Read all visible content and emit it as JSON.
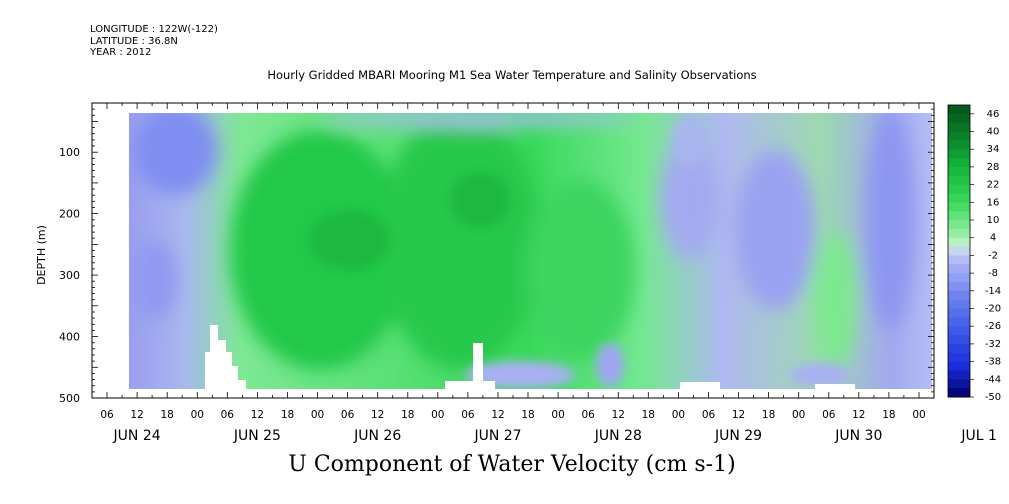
{
  "header": {
    "longitude": "LONGITUDE : 122W(-122)",
    "latitude": "LATITUDE : 36.8N",
    "year": "YEAR : 2012",
    "title": "Hourly Gridded MBARI Mooring M1 Sea Water Temperature and Salinity Observations"
  },
  "chart_data": {
    "type": "heatmap",
    "title": "Hourly Gridded MBARI Mooring M1 Sea Water Temperature and Salinity Observations",
    "xlabel": "U Component of Water Velocity (cm s-1)",
    "ylabel": "DEPTH (m)",
    "x_ticks_hours": [
      "06",
      "12",
      "18",
      "00",
      "06",
      "12",
      "18",
      "00",
      "06",
      "12",
      "18",
      "00",
      "06",
      "12",
      "18",
      "00",
      "06",
      "12",
      "18",
      "00",
      "06",
      "12",
      "18",
      "00",
      "06",
      "12",
      "18",
      "00",
      "06",
      "12",
      "18",
      "00"
    ],
    "x_day_labels": [
      "JUN 24",
      "JUN 25",
      "JUN 26",
      "JUN 27",
      "JUN 28",
      "JUN 29",
      "JUN 30",
      "JUL  1"
    ],
    "x_range": [
      "2012-06-24T03:00",
      "2012-07-01T03:00"
    ],
    "y_ticks": [
      100,
      200,
      300,
      400,
      500
    ],
    "ylim": [
      500,
      20
    ],
    "y_inverted": true,
    "data_depth_range": [
      20,
      485
    ],
    "data_time_range": [
      "2012-06-24T12:00",
      "2012-07-01T00:00"
    ],
    "colorbar": {
      "labels": [
        "46",
        "40",
        "34",
        "28",
        "22",
        "16",
        "10",
        "4",
        "-2",
        "-8",
        "-14",
        "-20",
        "-26",
        "-32",
        "-38",
        "-44",
        "-50"
      ],
      "range": [
        -50,
        49
      ]
    },
    "features": [
      {
        "time_range": [
          "2012-06-24T12:00",
          "2012-06-25T06:00"
        ],
        "depth_range": [
          20,
          250
        ],
        "value_approx": -12
      },
      {
        "time_range": [
          "2012-06-25T12:00",
          "2012-06-28T12:00"
        ],
        "depth_range": [
          100,
          450
        ],
        "value_approx": 20
      },
      {
        "time_range": [
          "2012-06-29T06:00",
          "2012-06-29T18:00"
        ],
        "depth_range": [
          100,
          380
        ],
        "value_approx": -10
      },
      {
        "time_range": [
          "2012-06-30T18:00",
          "2012-07-01T00:00"
        ],
        "depth_range": [
          20,
          400
        ],
        "value_approx": -14
      }
    ]
  }
}
